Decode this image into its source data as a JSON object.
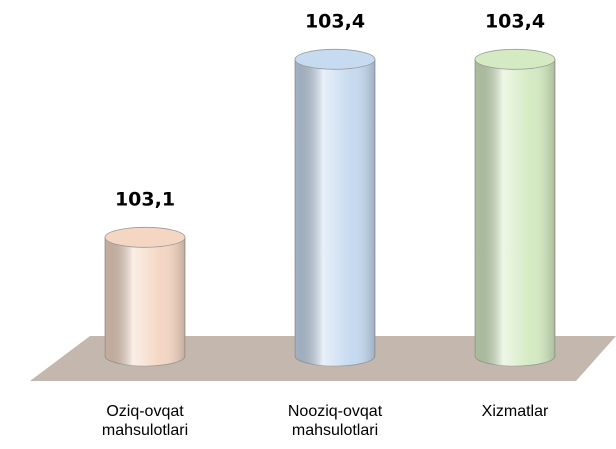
{
  "chart_data": {
    "type": "bar",
    "categories": [
      "Oziq-ovqat mahsulotlari",
      "Nooziq-ovqat mahsulotlari",
      "Xizmatlar"
    ],
    "values": [
      103.1,
      103.4,
      103.4
    ],
    "value_labels": [
      "103,1",
      "103,4",
      "103,4"
    ],
    "colors": [
      "#f4d6c3",
      "#c6daf0",
      "#d4eac2"
    ],
    "ylim": [
      102.9,
      103.5
    ]
  }
}
